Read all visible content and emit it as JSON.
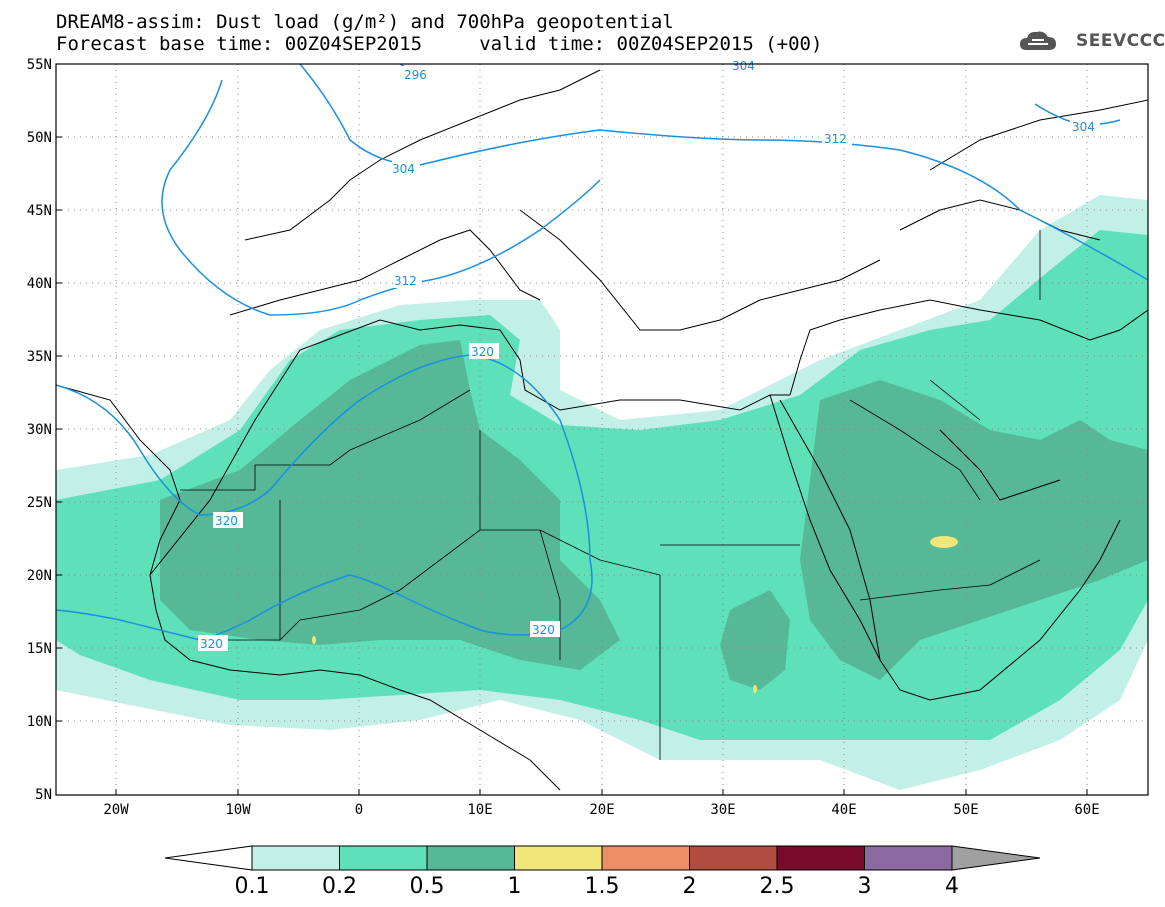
{
  "title": {
    "line1": "DREAM8-assim: Dust load (g/m²) and 700hPa geopotential",
    "line2": "Forecast base time: 00Z04SEP2015     valid time: 00Z04SEP2015 (+00)"
  },
  "logo": {
    "text": "SEEVCCC",
    "icon": "cloud-logo-icon"
  },
  "map": {
    "lat_labels": [
      "55N",
      "50N",
      "45N",
      "40N",
      "35N",
      "30N",
      "25N",
      "20N",
      "15N",
      "10N",
      "5N"
    ],
    "lon_labels": [
      "20W",
      "10W",
      "0",
      "10E",
      "20E",
      "30E",
      "40E",
      "50E",
      "60E"
    ],
    "contour_labels": [
      "296",
      "304",
      "312",
      "320",
      "320",
      "320",
      "320",
      "312",
      "304",
      "304"
    ],
    "contour_color": "#1a90e0"
  },
  "colorbar": {
    "ticks": [
      "0.1",
      "0.2",
      "0.5",
      "1",
      "1.5",
      "2",
      "2.5",
      "3",
      "4"
    ],
    "colors": [
      "#c2f0e6",
      "#5ee0b9",
      "#56b896",
      "#f2e57a",
      "#ec8f68",
      "#b04c40",
      "#7a0a2a",
      "#8a6aa0"
    ],
    "under_color": "#ffffff",
    "over_color": "#a0a0a0"
  }
}
